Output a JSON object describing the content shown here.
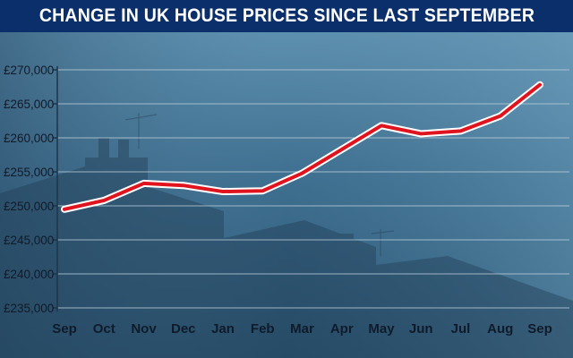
{
  "chart_data": {
    "type": "line",
    "title": "CHANGE IN UK HOUSE PRICES SINCE LAST SEPTEMBER",
    "xlabel": "",
    "ylabel": "",
    "categories": [
      "Sep",
      "Oct",
      "Nov",
      "Dec",
      "Jan",
      "Feb",
      "Mar",
      "Apr",
      "May",
      "Jun",
      "Jul",
      "Aug",
      "Sep"
    ],
    "series": [
      {
        "values": [
          249500,
          250800,
          253300,
          253000,
          252100,
          252200,
          254800,
          258300,
          261800,
          260600,
          261000,
          263200,
          267800
        ]
      }
    ],
    "ylim": [
      235000,
      270000
    ],
    "yticks": [
      235000,
      240000,
      245000,
      250000,
      255000,
      260000,
      265000,
      270000
    ],
    "ytick_labels": [
      "£235,000",
      "£240,000",
      "£245,000",
      "£250,000",
      "£255,000",
      "£260,000",
      "£265,000",
      "£270,000"
    ],
    "grid": true,
    "legend": "none",
    "colors": {
      "line": "#e0141e",
      "line_outline": "#ffffff",
      "grid": "#b9cdd9",
      "title_bar": "#0b2f6b"
    }
  }
}
